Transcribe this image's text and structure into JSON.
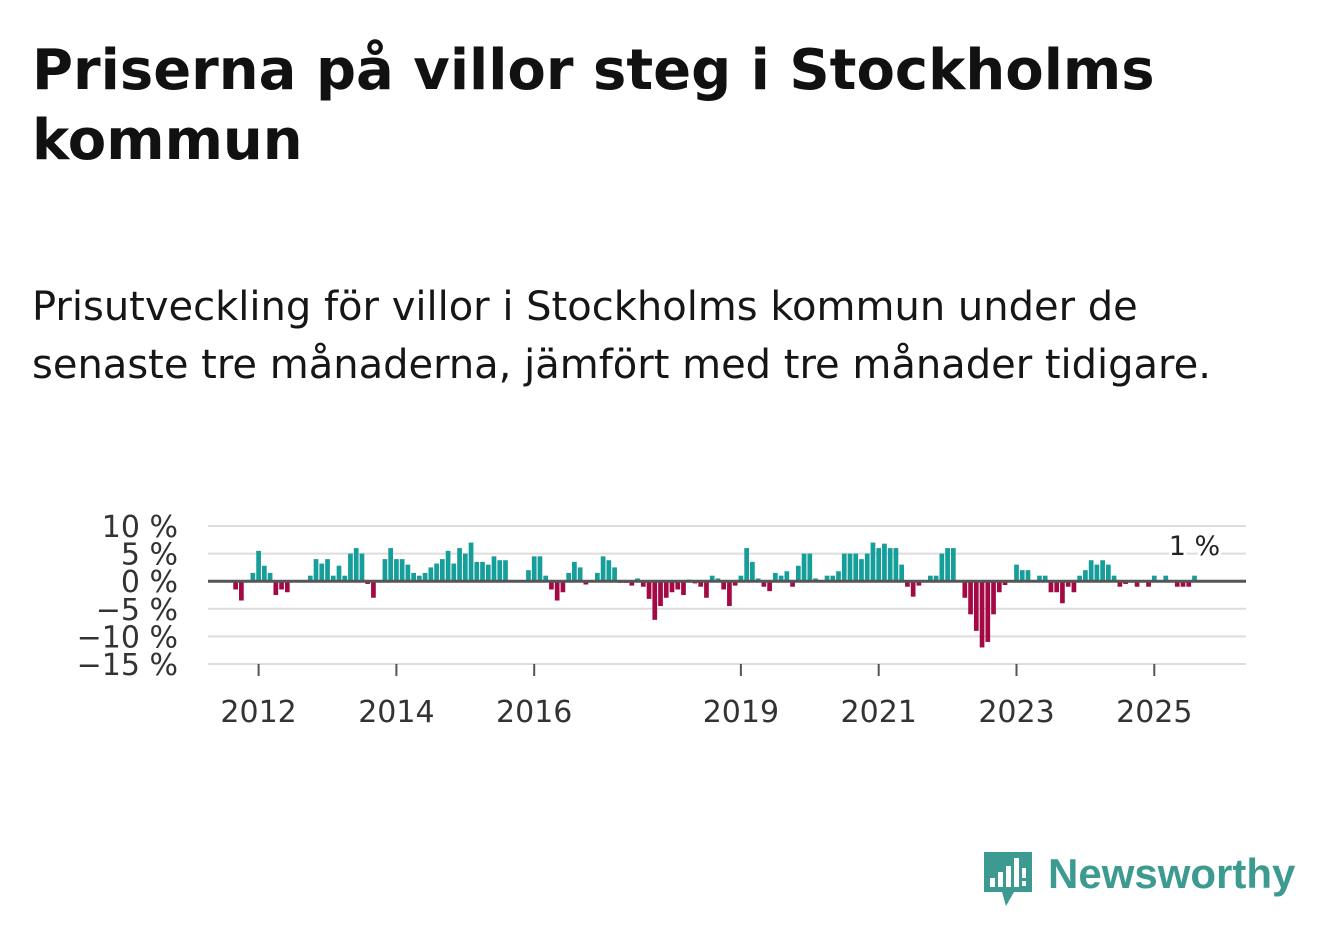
{
  "title": "Priserna på villor steg i Stockholms kommun",
  "subtitle": "Prisutveckling för villor i Stockholms kommun under de senaste tre månaderna, jämfört med tre månader tidigare.",
  "brand": {
    "name": "Newsworthy",
    "color": "#3c9a91"
  },
  "colors": {
    "positive": "#169e9a",
    "negative": "#a30a45",
    "zero_line": "#555555",
    "grid": "#dddddd",
    "text": "#333333"
  },
  "chart_data": {
    "type": "bar",
    "ylabel": "",
    "xlabel": "",
    "ylim": [
      -15,
      10
    ],
    "yticks": [
      10,
      5,
      0,
      -5,
      -10,
      -15
    ],
    "ytick_labels": [
      "10 %",
      "5 %",
      "0 %",
      "−5 %",
      "−10 %",
      "−15 %"
    ],
    "xticks": [
      2012,
      2014,
      2016,
      2019,
      2021,
      2023,
      2025
    ],
    "xtick_labels": [
      "2012",
      "2014",
      "2016",
      "2019",
      "2021",
      "2023",
      "2025"
    ],
    "start": "2011-01",
    "last_label": "1 %",
    "series": [
      {
        "name": "Prisutveckling",
        "values": [
          0,
          0,
          0,
          0,
          0,
          0,
          0,
          0,
          -1.5,
          -3.5,
          0,
          1.5,
          5.5,
          2.8,
          1.5,
          -2.5,
          -1.5,
          -2,
          0,
          0,
          0,
          1,
          4,
          3.2,
          4,
          1,
          2.8,
          1,
          5,
          6,
          5,
          -0.5,
          -3,
          0,
          4,
          6,
          4,
          4,
          3,
          1.5,
          1,
          1.5,
          2.5,
          3.2,
          4,
          5.5,
          3.2,
          6,
          5,
          7,
          3.5,
          3.5,
          3,
          4.5,
          3.8,
          3.8,
          0,
          0,
          0,
          2,
          4.5,
          4.5,
          1,
          -1.5,
          -3.5,
          -2,
          1.5,
          3.5,
          2.5,
          -0.6,
          0,
          1.5,
          4.5,
          3.8,
          2.5,
          -0.3,
          -0.3,
          -0.8,
          0.5,
          -1,
          -3.2,
          -7,
          -4.5,
          -3,
          -2,
          -1.5,
          -2.5,
          0.3,
          -0.4,
          -1,
          -3,
          1,
          0.5,
          -1.5,
          -4.5,
          -0.8,
          1,
          6,
          3.5,
          0.5,
          -1,
          -1.8,
          1.5,
          1,
          1.8,
          -1,
          2.8,
          5,
          5,
          0.5,
          0,
          1,
          1,
          1.8,
          5,
          5,
          5,
          4,
          5,
          7,
          6,
          6.8,
          6,
          6,
          3,
          -1,
          -2.8,
          -0.8,
          0,
          1,
          1,
          5,
          6,
          6,
          0,
          -3,
          -6,
          -9,
          -12,
          -11,
          -6,
          -2,
          -0.7,
          0,
          3,
          2,
          2,
          0,
          1,
          1,
          -2,
          -2,
          -4,
          -1,
          -2,
          1,
          2,
          3.8,
          3,
          3.8,
          3,
          1,
          -1,
          -0.5,
          0,
          -1,
          0,
          -1,
          1,
          0,
          1,
          0,
          -1,
          -1,
          -1,
          1
        ]
      }
    ]
  }
}
